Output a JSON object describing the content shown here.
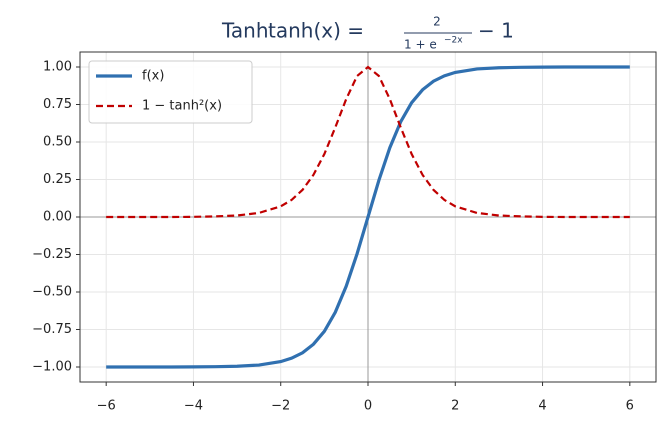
{
  "chart_data": {
    "type": "line",
    "title": "Tanh",
    "title_formula": {
      "lhs": "tanh(x) =",
      "numerator": "2",
      "denominator": "1 + e",
      "exponent": "−2x",
      "rhs": "− 1"
    },
    "x": [
      -6,
      -5.5,
      -5,
      -4.5,
      -4,
      -3.5,
      -3,
      -2.5,
      -2,
      -1.75,
      -1.5,
      -1.25,
      -1,
      -0.75,
      -0.5,
      -0.25,
      0,
      0.25,
      0.5,
      0.75,
      1,
      1.25,
      1.5,
      1.75,
      2,
      2.5,
      3,
      3.5,
      4,
      4.5,
      5,
      5.5,
      6
    ],
    "series": [
      {
        "name": "f(x)",
        "color": "#3070b0",
        "style": "solid",
        "values": [
          -1.0,
          -1.0,
          -1.0,
          -1.0,
          -0.999,
          -0.998,
          -0.995,
          -0.987,
          -0.964,
          -0.941,
          -0.905,
          -0.848,
          -0.762,
          -0.635,
          -0.462,
          -0.245,
          0,
          0.245,
          0.462,
          0.635,
          0.762,
          0.848,
          0.905,
          0.941,
          0.964,
          0.987,
          0.995,
          0.998,
          0.999,
          1.0,
          1.0,
          1.0,
          1.0
        ]
      },
      {
        "name": "1 − tanh²(x)",
        "color": "#c00000",
        "style": "dashed",
        "values": [
          0.0,
          0.0,
          0.0,
          0.0,
          0.001,
          0.004,
          0.01,
          0.027,
          0.071,
          0.114,
          0.181,
          0.281,
          0.42,
          0.597,
          0.786,
          0.94,
          1.0,
          0.94,
          0.786,
          0.597,
          0.42,
          0.281,
          0.181,
          0.114,
          0.071,
          0.027,
          0.01,
          0.004,
          0.001,
          0.0,
          0.0,
          0.0,
          0.0
        ]
      }
    ],
    "xlim": [
      -6.6,
      6.6
    ],
    "ylim": [
      -1.1,
      1.1
    ],
    "xticks": [
      {
        "value": -6,
        "label": "−6"
      },
      {
        "value": -4,
        "label": "−4"
      },
      {
        "value": -2,
        "label": "−2"
      },
      0,
      2,
      4,
      6
    ],
    "yticks": [
      {
        "value": -1,
        "label": "−1.00"
      },
      {
        "value": -0.75,
        "label": "−0.75"
      },
      {
        "value": -0.5,
        "label": "−0.50"
      },
      {
        "value": -0.25,
        "label": "−0.25"
      },
      {
        "value": 0,
        "label": "0.00"
      },
      {
        "value": 0.25,
        "label": "0.25"
      },
      {
        "value": 0.5,
        "label": "0.50"
      },
      {
        "value": 0.75,
        "label": "0.75"
      },
      {
        "value": 1,
        "label": "1.00"
      }
    ],
    "grid": true,
    "legend": "upper left"
  }
}
